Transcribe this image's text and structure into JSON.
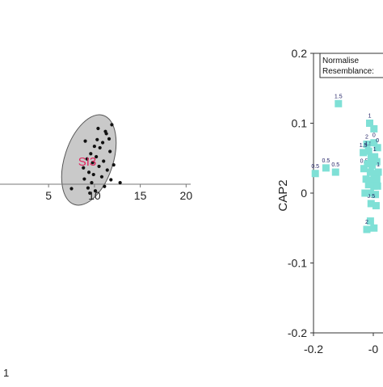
{
  "chart_data": [
    {
      "type": "scatter",
      "title": "",
      "xlabel": "",
      "ylabel": "",
      "x_ticks": [
        "5",
        "10",
        "15",
        "20"
      ],
      "xlim": [
        -0.3,
        20.5
      ],
      "ellipse_label": "SI3",
      "corner_label": "1",
      "colors": {
        "points": "#111111",
        "ellipse_fill": "#c9c9c9",
        "ellipse_stroke": "#555555",
        "label": "#e0245e"
      },
      "points": [
        {
          "x": 7.5,
          "y": -0.6
        },
        {
          "x": 8.9,
          "y": 0.7
        },
        {
          "x": 8.8,
          "y": 2.2
        },
        {
          "x": 9.2,
          "y": 3.4
        },
        {
          "x": 9.6,
          "y": 4.1
        },
        {
          "x": 9.8,
          "y": 2.9
        },
        {
          "x": 10.2,
          "y": 3.7
        },
        {
          "x": 9.4,
          "y": 1.6
        },
        {
          "x": 10.6,
          "y": 4.9
        },
        {
          "x": 11.0,
          "y": 3.1
        },
        {
          "x": 11.3,
          "y": 6.8
        },
        {
          "x": 11.9,
          "y": 8.0
        },
        {
          "x": 10.9,
          "y": 5.6
        },
        {
          "x": 11.6,
          "y": 6.1
        },
        {
          "x": 10.0,
          "y": 5.1
        },
        {
          "x": 11.4,
          "y": 1.9
        },
        {
          "x": 11.8,
          "y": 0.6
        },
        {
          "x": 10.8,
          "y": 1.0
        },
        {
          "x": 9.7,
          "y": 0.2
        },
        {
          "x": 9.3,
          "y": -0.5
        },
        {
          "x": 10.1,
          "y": -0.9
        },
        {
          "x": 12.1,
          "y": 2.6
        },
        {
          "x": 12.8,
          "y": 0.2
        },
        {
          "x": 11.2,
          "y": 7.1
        },
        {
          "x": 10.3,
          "y": 6.0
        },
        {
          "x": 9.0,
          "y": 5.8
        },
        {
          "x": 9.9,
          "y": 1.3
        },
        {
          "x": 10.5,
          "y": 2.4
        },
        {
          "x": 11.7,
          "y": 4.4
        },
        {
          "x": 10.4,
          "y": 7.5
        },
        {
          "x": 9.5,
          "y": -1.2
        },
        {
          "x": 11.1,
          "y": -0.3
        }
      ]
    },
    {
      "type": "scatter",
      "title": "",
      "xlabel": "",
      "ylabel": "CAP2",
      "xlim": [
        -0.2,
        0.05
      ],
      "ylim": [
        -0.2,
        0.2
      ],
      "y_ticks": [
        "0.2",
        "0.1",
        "0",
        "-0.1",
        "-0.2"
      ],
      "x_ticks": [
        "-0.2",
        "-0"
      ],
      "legend_lines": [
        "Normalise",
        "Resemblance:"
      ],
      "colors": {
        "markers": "#7fe0d6",
        "labels": "#222266"
      },
      "points": [
        {
          "x": -0.195,
          "y": 0.028,
          "label": "0.5"
        },
        {
          "x": -0.165,
          "y": 0.036,
          "label": "0.5"
        },
        {
          "x": -0.13,
          "y": 0.128,
          "label": "1.5"
        },
        {
          "x": -0.138,
          "y": 0.03,
          "label": "0.5"
        },
        {
          "x": -0.058,
          "y": 0.035,
          "label": "0.5"
        },
        {
          "x": -0.042,
          "y": 0.1,
          "label": "1"
        },
        {
          "x": -0.03,
          "y": 0.092,
          "label": ""
        },
        {
          "x": -0.05,
          "y": 0.07,
          "label": "2"
        },
        {
          "x": -0.045,
          "y": 0.06,
          "label": "1.5"
        },
        {
          "x": -0.06,
          "y": 0.058,
          "label": "1.5"
        },
        {
          "x": -0.03,
          "y": 0.072,
          "label": "0"
        },
        {
          "x": -0.02,
          "y": 0.065,
          "label": "0"
        },
        {
          "x": -0.038,
          "y": 0.05,
          "label": ""
        },
        {
          "x": -0.028,
          "y": 0.052,
          "label": "1"
        },
        {
          "x": -0.048,
          "y": 0.042,
          "label": ""
        },
        {
          "x": -0.035,
          "y": 0.04,
          "label": ""
        },
        {
          "x": -0.022,
          "y": 0.045,
          "label": ""
        },
        {
          "x": -0.04,
          "y": 0.03,
          "label": ""
        },
        {
          "x": -0.03,
          "y": 0.028,
          "label": ""
        },
        {
          "x": -0.018,
          "y": 0.03,
          "label": "1"
        },
        {
          "x": -0.052,
          "y": 0.02,
          "label": ""
        },
        {
          "x": -0.035,
          "y": 0.018,
          "label": ""
        },
        {
          "x": -0.022,
          "y": 0.02,
          "label": ""
        },
        {
          "x": -0.045,
          "y": 0.012,
          "label": ""
        },
        {
          "x": -0.03,
          "y": 0.01,
          "label": ""
        },
        {
          "x": -0.04,
          "y": 0.0,
          "label": ""
        },
        {
          "x": -0.026,
          "y": -0.002,
          "label": ""
        },
        {
          "x": -0.038,
          "y": -0.015,
          "label": "0.5"
        },
        {
          "x": -0.024,
          "y": -0.018,
          "label": ""
        },
        {
          "x": -0.04,
          "y": -0.04,
          "label": ""
        },
        {
          "x": -0.05,
          "y": -0.052,
          "label": "2"
        },
        {
          "x": -0.03,
          "y": -0.05,
          "label": ""
        },
        {
          "x": -0.02,
          "y": 0.01,
          "label": ""
        },
        {
          "x": -0.055,
          "y": 0.0,
          "label": ""
        }
      ]
    }
  ]
}
